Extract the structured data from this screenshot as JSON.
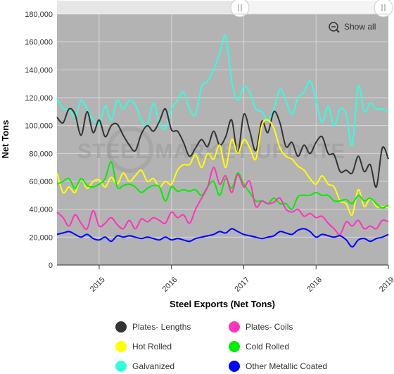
{
  "chart_data": {
    "type": "line",
    "title": "",
    "xlabel": "Steel Exports (Net Tons)",
    "ylabel": "Net Tons",
    "ylim": [
      0,
      180000
    ],
    "xlim": [
      "2014-06",
      "2019-01"
    ],
    "yticks": [
      0,
      20000,
      40000,
      60000,
      80000,
      100000,
      120000,
      140000,
      160000,
      180000
    ],
    "ytick_labels": [
      "0",
      "20,000",
      "40,000",
      "60,000",
      "80,000",
      "100,000",
      "120,000",
      "140,000",
      "160,000",
      "180,000"
    ],
    "xticks": [
      "2015-01",
      "2016-01",
      "2017-01",
      "2018-01",
      "2019-01"
    ],
    "xtick_labels": [
      "2015",
      "2016",
      "2017",
      "2018",
      "2019"
    ],
    "grid": true,
    "legend_position": "bottom",
    "background_color": "#b3b3b3",
    "watermark": "STEEL MARKET UPDATE",
    "show_all_label": "Show all",
    "x": [
      "2014-06",
      "2014-07",
      "2014-08",
      "2014-09",
      "2014-10",
      "2014-11",
      "2014-12",
      "2015-01",
      "2015-02",
      "2015-03",
      "2015-04",
      "2015-05",
      "2015-06",
      "2015-07",
      "2015-08",
      "2015-09",
      "2015-10",
      "2015-11",
      "2015-12",
      "2016-01",
      "2016-02",
      "2016-03",
      "2016-04",
      "2016-05",
      "2016-06",
      "2016-07",
      "2016-08",
      "2016-09",
      "2016-10",
      "2016-11",
      "2016-12",
      "2017-01",
      "2017-02",
      "2017-03",
      "2017-04",
      "2017-05",
      "2017-06",
      "2017-07",
      "2017-08",
      "2017-09",
      "2017-10",
      "2017-11",
      "2017-12",
      "2018-01",
      "2018-02",
      "2018-03",
      "2018-04",
      "2018-05",
      "2018-06",
      "2018-07",
      "2018-08",
      "2018-09",
      "2018-10",
      "2018-11",
      "2018-12",
      "2019-01"
    ],
    "series": [
      {
        "name": "Plates- Lengths",
        "color": "#333333",
        "values": [
          106000,
          102000,
          112000,
          108000,
          93000,
          110000,
          95000,
          104000,
          92000,
          100000,
          101000,
          93000,
          86000,
          82000,
          94000,
          100000,
          96000,
          103000,
          112000,
          97000,
          96000,
          88000,
          78000,
          84000,
          90000,
          85000,
          96000,
          86000,
          92000,
          104000,
          80000,
          108000,
          96000,
          82000,
          103000,
          95000,
          110000,
          102000,
          85000,
          88000,
          78000,
          86000,
          80000,
          88000,
          92000,
          80000,
          79000,
          67000,
          68000,
          66000,
          78000,
          67000,
          72000,
          56000,
          84000,
          76000
        ]
      },
      {
        "name": "Plates- Coils",
        "color": "#ff33bb",
        "values": [
          38000,
          34000,
          28000,
          36000,
          30000,
          26000,
          39000,
          28000,
          30000,
          34000,
          29000,
          26000,
          32000,
          26000,
          33000,
          31000,
          34000,
          32000,
          30000,
          38000,
          34000,
          36000,
          30000,
          40000,
          48000,
          56000,
          70000,
          58000,
          64000,
          52000,
          65000,
          56000,
          60000,
          42000,
          46000,
          44000,
          45000,
          48000,
          40000,
          38000,
          40000,
          35000,
          37000,
          34000,
          35000,
          30000,
          26000,
          22000,
          31000,
          28000,
          32000,
          26000,
          28000,
          26000,
          32000,
          31000
        ]
      },
      {
        "name": "Hot Rolled",
        "color": "#ffff00",
        "values": [
          66000,
          52000,
          56000,
          52000,
          62000,
          55000,
          60000,
          61000,
          56000,
          63000,
          58000,
          66000,
          60000,
          64000,
          68000,
          60000,
          62000,
          56000,
          60000,
          58000,
          68000,
          72000,
          72000,
          79000,
          70000,
          80000,
          76000,
          86000,
          70000,
          90000,
          80000,
          90000,
          84000,
          76000,
          100000,
          104000,
          98000,
          84000,
          78000,
          76000,
          71000,
          68000,
          62000,
          58000,
          64000,
          58000,
          56000,
          46000,
          44000,
          36000,
          54000,
          42000,
          48000,
          42000,
          42000,
          41000
        ]
      },
      {
        "name": "Cold Rolled",
        "color": "#00ee00",
        "values": [
          58000,
          60000,
          62000,
          55000,
          62000,
          57000,
          56000,
          58000,
          62000,
          74000,
          56000,
          57000,
          58000,
          56000,
          52000,
          55000,
          57000,
          56000,
          46000,
          56000,
          53000,
          54000,
          53000,
          54000,
          50000,
          56000,
          60000,
          50000,
          62000,
          55000,
          66000,
          58000,
          52000,
          46000,
          46000,
          44000,
          48000,
          44000,
          44000,
          40000,
          49000,
          50000,
          50000,
          52000,
          50000,
          50000,
          46000,
          46000,
          47000,
          44000,
          50000,
          46000,
          48000,
          44000,
          41000,
          43000
        ]
      },
      {
        "name": "Galvanized",
        "color": "#33ffdd",
        "values": [
          120000,
          112000,
          112000,
          106000,
          118000,
          112000,
          104000,
          101000,
          114000,
          104000,
          118000,
          112000,
          118000,
          115000,
          104000,
          101000,
          116000,
          102000,
          98000,
          112000,
          118000,
          124000,
          112000,
          108000,
          128000,
          132000,
          140000,
          152000,
          164000,
          132000,
          118000,
          128000,
          124000,
          112000,
          110000,
          104000,
          112000,
          126000,
          118000,
          108000,
          120000,
          124000,
          132000,
          118000,
          102000,
          114000,
          100000,
          112000,
          108000,
          86000,
          128000,
          110000,
          116000,
          112000,
          112000,
          110000
        ]
      },
      {
        "name": "Other Metallic Coated",
        "color": "#0000ff",
        "values": [
          22000,
          23000,
          24000,
          22000,
          20000,
          22000,
          19000,
          18000,
          20000,
          17000,
          21000,
          20000,
          21000,
          20000,
          19000,
          20000,
          19000,
          18000,
          20000,
          18000,
          19000,
          18000,
          17000,
          19000,
          20000,
          21000,
          22000,
          24000,
          23000,
          26000,
          24000,
          22000,
          21000,
          20000,
          19000,
          20000,
          21000,
          24000,
          23000,
          22000,
          25000,
          26000,
          24000,
          20000,
          22000,
          21000,
          20000,
          21000,
          18000,
          13000,
          18000,
          19000,
          17000,
          19000,
          20000,
          22000
        ]
      }
    ]
  }
}
